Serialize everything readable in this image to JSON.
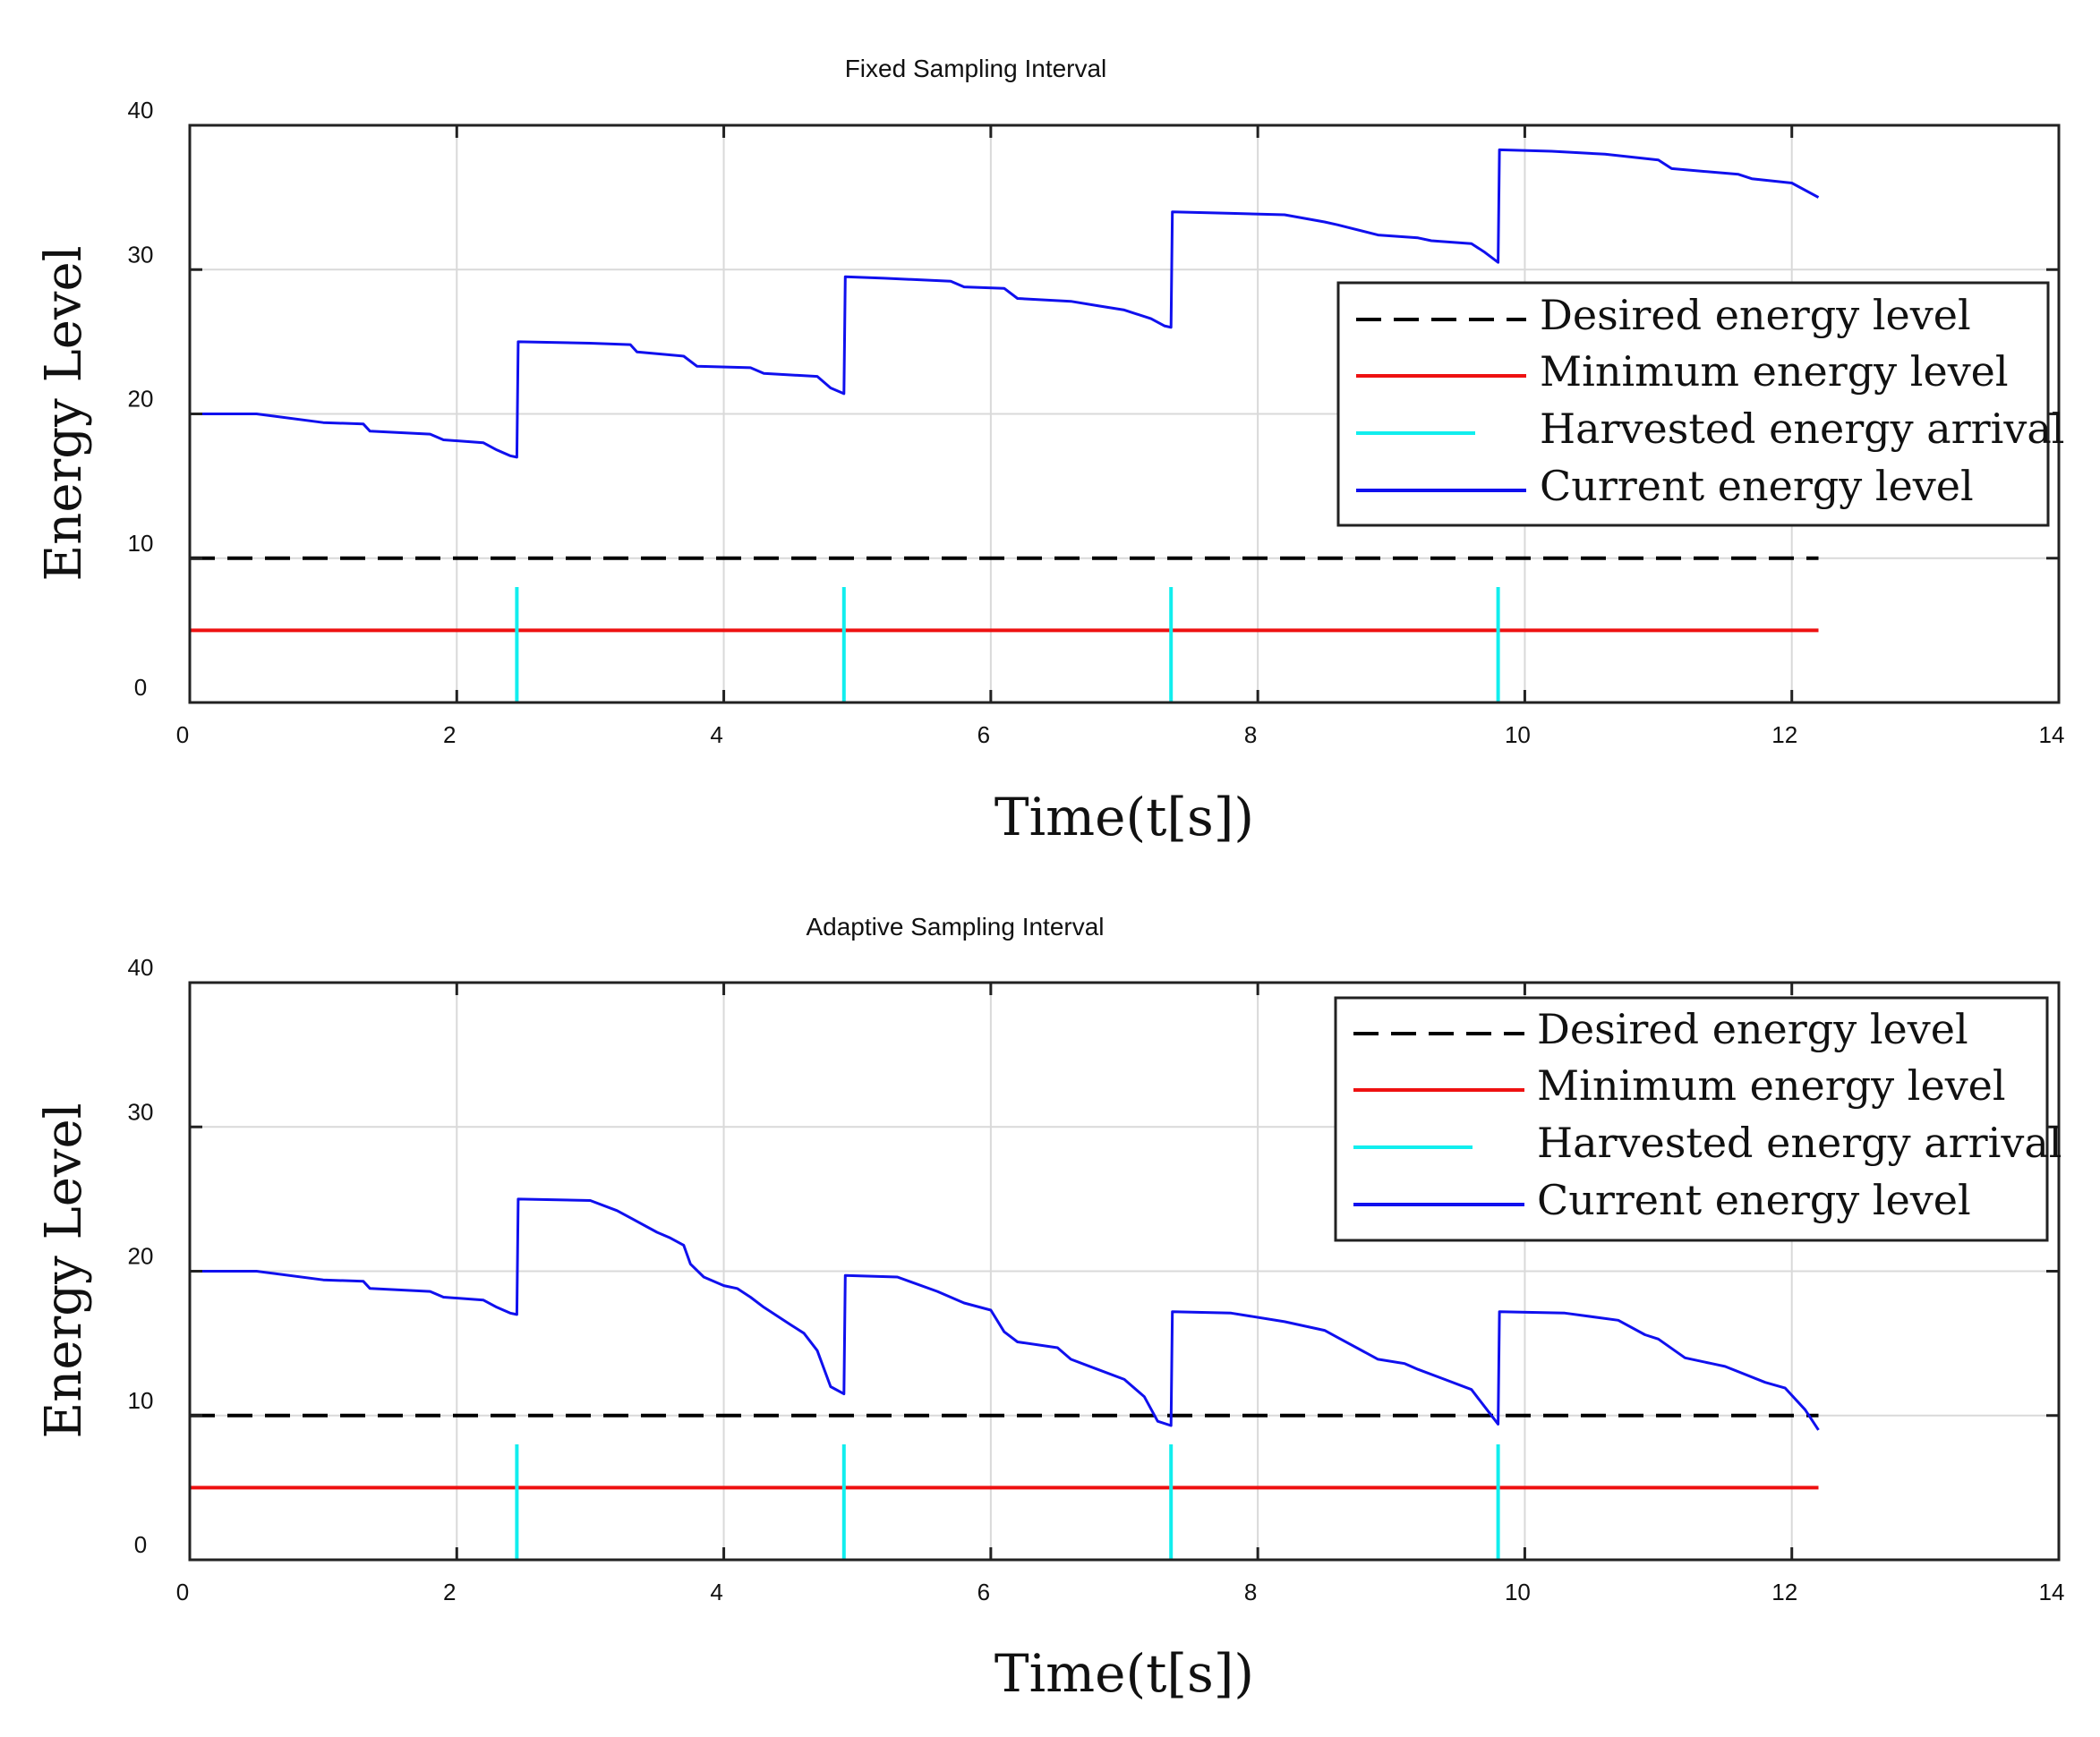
{
  "colors": {
    "current": "#1010ee",
    "minimum": "#ee1111",
    "harvest": "#11eeee",
    "desired": "#000000",
    "grid": "#d9d9d9",
    "axis": "#222222"
  },
  "chart_data": [
    {
      "type": "line",
      "title": "Fixed Sampling Interval",
      "xlabel": "Time(t[s])",
      "ylabel": "Energy Level",
      "xlim": [
        0,
        14
      ],
      "ylim": [
        0,
        40
      ],
      "xticks": [
        "0",
        "2",
        "4",
        "6",
        "8",
        "10",
        "12",
        "14"
      ],
      "yticks": [
        "0",
        "10",
        "20",
        "30",
        "40"
      ],
      "grid": true,
      "legend_position": "top-right",
      "legend": [
        "Desired energy level",
        "Minimum energy level",
        "Harvested energy arrival",
        "Current energy level"
      ],
      "series": [
        {
          "name": "Desired energy level",
          "style": "dashed",
          "x": [
            0,
            12.2
          ],
          "y": [
            10,
            10
          ]
        },
        {
          "name": "Minimum energy level",
          "style": "solid",
          "x": [
            0,
            12.2
          ],
          "y": [
            5,
            5
          ]
        },
        {
          "name": "Harvested energy arrival",
          "style": "impulse",
          "x": [
            2.45,
            4.9,
            7.35,
            9.8
          ],
          "y_range": [
            0,
            8
          ]
        },
        {
          "name": "Current energy level",
          "style": "solid",
          "x": [
            0,
            0.5,
            1.0,
            1.3,
            1.35,
            1.8,
            1.9,
            2.2,
            2.3,
            2.4,
            2.45,
            2.46,
            3.0,
            3.3,
            3.35,
            3.7,
            3.8,
            4.2,
            4.3,
            4.7,
            4.8,
            4.9,
            4.91,
            5.2,
            5.7,
            5.8,
            6.1,
            6.2,
            6.6,
            6.8,
            7.0,
            7.2,
            7.3,
            7.35,
            7.36,
            7.8,
            8.2,
            8.5,
            8.6,
            8.9,
            9.2,
            9.3,
            9.6,
            9.7,
            9.8,
            9.81,
            10.2,
            10.6,
            11.0,
            11.1,
            11.6,
            11.7,
            12.0,
            12.2
          ],
          "y": [
            20,
            20,
            19.4,
            19.3,
            18.8,
            18.6,
            18.2,
            18,
            17.5,
            17.1,
            17,
            25,
            24.9,
            24.8,
            24.3,
            24,
            23.3,
            23.2,
            22.8,
            22.6,
            21.8,
            21.4,
            29.5,
            29.4,
            29.2,
            28.8,
            28.7,
            28,
            27.8,
            27.5,
            27.2,
            26.6,
            26.1,
            26,
            34,
            33.9,
            33.8,
            33.3,
            33.1,
            32.4,
            32.2,
            32,
            31.8,
            31.2,
            30.5,
            38.3,
            38.2,
            38,
            37.6,
            37,
            36.6,
            36.3,
            36.0,
            35.0
          ]
        }
      ]
    },
    {
      "type": "line",
      "title": "Adaptive Sampling Interval",
      "xlabel": "Time(t[s])",
      "ylabel": "Energy Level",
      "xlim": [
        0,
        14
      ],
      "ylim": [
        0,
        40
      ],
      "xticks": [
        "0",
        "2",
        "4",
        "6",
        "8",
        "10",
        "12",
        "14"
      ],
      "yticks": [
        "0",
        "10",
        "20",
        "30",
        "40"
      ],
      "grid": true,
      "legend_position": "top-right",
      "legend": [
        "Desired energy level",
        "Minimum energy level",
        "Harvested energy arrival",
        "Current energy level"
      ],
      "series": [
        {
          "name": "Desired energy level",
          "style": "dashed",
          "x": [
            0,
            12.2
          ],
          "y": [
            10,
            10
          ]
        },
        {
          "name": "Minimum energy level",
          "style": "solid",
          "x": [
            0,
            12.2
          ],
          "y": [
            5,
            5
          ]
        },
        {
          "name": "Harvested energy arrival",
          "style": "impulse",
          "x": [
            2.45,
            4.9,
            7.35,
            9.8
          ],
          "y_range": [
            0,
            8
          ]
        },
        {
          "name": "Current energy level",
          "style": "solid",
          "x": [
            0,
            0.5,
            1.0,
            1.3,
            1.35,
            1.8,
            1.9,
            2.2,
            2.3,
            2.4,
            2.45,
            2.46,
            3.0,
            3.2,
            3.3,
            3.5,
            3.6,
            3.7,
            3.75,
            3.85,
            4.0,
            4.1,
            4.2,
            4.3,
            4.5,
            4.6,
            4.7,
            4.8,
            4.9,
            4.91,
            5.3,
            5.6,
            5.8,
            6.0,
            6.1,
            6.2,
            6.5,
            6.6,
            6.8,
            7.0,
            7.15,
            7.25,
            7.35,
            7.36,
            7.8,
            8.2,
            8.5,
            8.6,
            8.9,
            9.1,
            9.2,
            9.4,
            9.6,
            9.7,
            9.8,
            9.81,
            10.3,
            10.7,
            10.9,
            11.0,
            11.2,
            11.4,
            11.5,
            11.8,
            11.95,
            12.1,
            12.2
          ],
          "y": [
            20,
            20,
            19.4,
            19.3,
            18.8,
            18.6,
            18.2,
            18,
            17.5,
            17.1,
            17,
            25,
            24.9,
            24.2,
            23.7,
            22.7,
            22.3,
            21.8,
            20.5,
            19.6,
            19.0,
            18.8,
            18.2,
            17.5,
            16.3,
            15.7,
            14.5,
            12,
            11.5,
            19.7,
            19.6,
            18.6,
            17.8,
            17.3,
            15.8,
            15.1,
            14.7,
            13.9,
            13.2,
            12.5,
            11.3,
            9.6,
            9.3,
            17.2,
            17.1,
            16.5,
            15.9,
            15.4,
            13.9,
            13.6,
            13.2,
            12.5,
            11.8,
            10.6,
            9.4,
            17.2,
            17.1,
            16.6,
            15.6,
            15.3,
            14.0,
            13.6,
            13.4,
            12.3,
            11.9,
            10.4,
            9.0
          ]
        }
      ]
    }
  ]
}
